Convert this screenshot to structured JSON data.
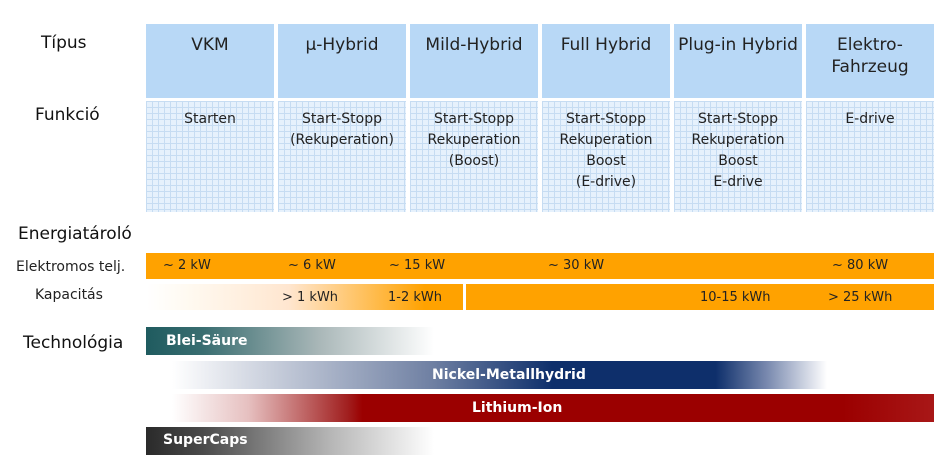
{
  "labels": {
    "tipus": "Típus",
    "funkcio": "Funkció",
    "energiatarolo": "Energiatároló",
    "elektromos": "Elektromos telj.",
    "kapacitas": "Kapacitás",
    "technologia": "Technológia"
  },
  "columns": [
    {
      "title": "VKM",
      "functions": "Starten"
    },
    {
      "title": "µ-Hybrid",
      "functions": "Start-Stopp\n(Rekuperation)"
    },
    {
      "title": "Mild-Hybrid",
      "functions": "Start-Stopp\nRekuperation\n(Boost)"
    },
    {
      "title": "Full Hybrid",
      "functions": "Start-Stopp\nRekuperation\nBoost\n(E-drive)"
    },
    {
      "title": "Plug-in Hybrid",
      "functions": "Start-Stopp\nRekuperation\nBoost\nE-drive"
    },
    {
      "title": "Elektro-\nFahrzeug",
      "functions": "E-drive"
    }
  ],
  "power": [
    "~ 2 kW",
    "~ 6 kW",
    "~ 15 kW",
    "~ 30 kW",
    "~ 80 kW"
  ],
  "capacity": [
    "> 1 kWh",
    "1-2 kWh",
    "10-15 kWh",
    "> 25 kWh"
  ],
  "technologies": {
    "lead_acid": "Blei-Säure",
    "nimh": "Nickel-Metallhydrid",
    "li_ion": "Lithium-Ion",
    "supercaps": "SuperCaps"
  },
  "colors": {
    "header": "#b8d8f6",
    "orange": "#ffa200",
    "lead_acid": "#1f5b5f",
    "nimh": "#0e2f6b",
    "li_ion": "#9b0000",
    "supercaps": "#2a2a2a"
  }
}
